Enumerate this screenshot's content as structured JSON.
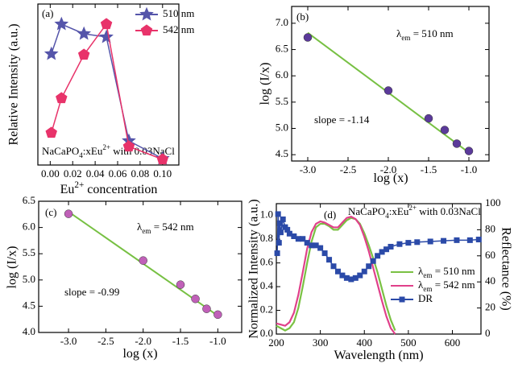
{
  "chart_data": [
    {
      "type": "line",
      "panel_label": "(a)",
      "xlabel": [
        "Eu",
        {
          "text": "2+",
          "shift": "super"
        },
        " concentration"
      ],
      "ylabel": "Relative Intensity (a.u.)",
      "xlim": [
        -0.011,
        0.1145
      ],
      "ylim": [
        0,
        1
      ],
      "xticks": [
        {
          "value": 0,
          "label": "0.00"
        },
        {
          "value": 0.02,
          "label": "0.02"
        },
        {
          "value": 0.04,
          "label": "0.04"
        },
        {
          "value": 0.06,
          "label": "0.06"
        },
        {
          "value": 0.08,
          "label": "0.08"
        },
        {
          "value": 0.1,
          "label": "0.10"
        }
      ],
      "annotations": [
        [
          "NaCaPO",
          {
            "text": "4",
            "shift": "sub"
          },
          ":xEu",
          {
            "text": "2+",
            "shift": "super"
          },
          " with 0.03NaCl"
        ]
      ],
      "series": [
        {
          "name": [
            "510 nm"
          ],
          "color": "#5555aa",
          "marker": "star",
          "x": [
            0.001,
            0.01,
            0.03,
            0.05,
            0.07,
            0.1
          ],
          "values": [
            0.69,
            0.875,
            0.815,
            0.795,
            0.15,
            0.04
          ]
        },
        {
          "name": [
            "542 nm"
          ],
          "color": "#e8336a",
          "marker": "pentagon",
          "x": [
            0.001,
            0.01,
            0.03,
            0.05,
            0.07,
            0.1
          ],
          "values": [
            0.2,
            0.415,
            0.685,
            0.875,
            0.115,
            0.035
          ]
        }
      ]
    },
    {
      "type": "scatter",
      "panel_label": "(b)",
      "xlabel": [
        "log (x)"
      ],
      "ylabel": "log (I/x)",
      "xlim": [
        -3.2,
        -0.75
      ],
      "ylim": [
        4.38,
        7.32
      ],
      "xticks": [
        {
          "value": -3,
          "label": "-3.0"
        },
        -2.5,
        {
          "value": -2,
          "label": "-2.0"
        },
        -1.5,
        {
          "value": -1,
          "label": "-1.0"
        }
      ],
      "yticks": [
        4.5,
        {
          "value": 5,
          "label": "5.0"
        },
        5.5,
        {
          "value": 6,
          "label": "6.0"
        },
        6.5,
        {
          "value": 7,
          "label": "7.0"
        }
      ],
      "annotations": [
        [
          "λ",
          {
            "text": "em",
            "shift": "sub"
          },
          " = 510 nm"
        ],
        [
          "slope = -1.14"
        ]
      ],
      "fit": {
        "color": "#77c043",
        "x": [
          -3,
          -1
        ],
        "values": [
          6.82,
          4.54
        ]
      },
      "series": [
        {
          "color": "#5b3a9a",
          "marker": "circle",
          "x": [
            -3,
            -2,
            -1.5,
            -1.3,
            -1.15,
            -1
          ],
          "values": [
            6.73,
            5.72,
            5.19,
            4.97,
            4.71,
            4.57
          ]
        }
      ]
    },
    {
      "type": "scatter",
      "panel_label": "(c)",
      "xlabel": [
        "log (x)"
      ],
      "ylabel": "log (I/x)",
      "xlim": [
        -3.4,
        -0.68
      ],
      "ylim": [
        4,
        6.5
      ],
      "xticks": [
        {
          "value": -3,
          "label": "-3.0"
        },
        -2.5,
        {
          "value": -2,
          "label": "-2.0"
        },
        -1.5,
        {
          "value": -1,
          "label": "-1.0"
        }
      ],
      "yticks": [
        {
          "value": 4,
          "label": "4.0"
        },
        4.5,
        {
          "value": 5,
          "label": "5.0"
        },
        5.5,
        {
          "value": 6,
          "label": "6.0"
        },
        6.5
      ],
      "annotations": [
        [
          "λ",
          {
            "text": "em",
            "shift": "sub"
          },
          " = 542 nm"
        ],
        [
          "slope = -0.99"
        ]
      ],
      "fit": {
        "color": "#77c043",
        "x": [
          -3,
          -1
        ],
        "values": [
          6.3,
          4.32
        ]
      },
      "series": [
        {
          "color": "#c060b8",
          "marker": "circle",
          "x": [
            -3,
            -2,
            -1.5,
            -1.3,
            -1.15,
            -1
          ],
          "values": [
            6.26,
            5.37,
            4.91,
            4.64,
            4.45,
            4.34
          ]
        }
      ]
    },
    {
      "type": "line",
      "panel_label": "(d)",
      "xlabel": [
        "Wavelength (nm)"
      ],
      "ylabel": "Normalized Intensity (a.u.)",
      "y2label": "Reflectance (%)",
      "xlim": [
        200,
        665
      ],
      "ylim": [
        0,
        1.1
      ],
      "y2lim": [
        0,
        100
      ],
      "xticks": [
        200,
        300,
        400,
        500,
        600
      ],
      "yticks": [
        {
          "value": 0,
          "label": "0.0"
        },
        0.2,
        0.4,
        0.6,
        0.8,
        {
          "value": 1,
          "label": "1.0"
        }
      ],
      "y2ticks": [
        0,
        20,
        40,
        60,
        80,
        100
      ],
      "annotations": [
        [
          "NaCaPO",
          {
            "text": "4",
            "shift": "sub"
          },
          ":xEu",
          {
            "text": "2+",
            "shift": "super"
          },
          " with 0.03NaCl"
        ]
      ],
      "series": [
        {
          "name": [
            "λ",
            {
              "text": "em",
              "shift": "sub"
            },
            " = 510 nm"
          ],
          "color": "#7ac143",
          "x": [
            200,
            210,
            220,
            230,
            240,
            250,
            260,
            270,
            280,
            290,
            300,
            310,
            320,
            330,
            340,
            350,
            360,
            370,
            380,
            390,
            400,
            410,
            420,
            430,
            440,
            450,
            460,
            470
          ],
          "values": [
            0.07,
            0.05,
            0.03,
            0.05,
            0.1,
            0.22,
            0.4,
            0.6,
            0.78,
            0.9,
            0.93,
            0.93,
            0.91,
            0.88,
            0.88,
            0.92,
            0.96,
            0.98,
            0.97,
            0.93,
            0.85,
            0.75,
            0.64,
            0.52,
            0.38,
            0.24,
            0.12,
            0.03
          ]
        },
        {
          "name": [
            "λ",
            {
              "text": "em",
              "shift": "sub"
            },
            " = 542 nm"
          ],
          "color": "#e0408a",
          "x": [
            200,
            210,
            220,
            230,
            240,
            250,
            260,
            270,
            280,
            290,
            300,
            310,
            320,
            330,
            340,
            350,
            360,
            370,
            380,
            390,
            400,
            410,
            420,
            430,
            440,
            450,
            460,
            470
          ],
          "values": [
            0.09,
            0.08,
            0.07,
            0.1,
            0.18,
            0.33,
            0.52,
            0.72,
            0.86,
            0.93,
            0.95,
            0.94,
            0.92,
            0.9,
            0.9,
            0.94,
            0.98,
            0.99,
            0.97,
            0.92,
            0.82,
            0.7,
            0.56,
            0.42,
            0.28,
            0.15,
            0.05,
            0
          ]
        },
        {
          "name": [
            "DR"
          ],
          "color": "#2b4aa8",
          "marker": "square",
          "axis": "y2",
          "x": [
            202,
            204,
            206,
            208,
            210,
            215,
            220,
            225,
            230,
            240,
            250,
            260,
            270,
            280,
            290,
            300,
            310,
            320,
            330,
            340,
            350,
            360,
            370,
            380,
            390,
            400,
            410,
            420,
            430,
            440,
            450,
            460,
            480,
            500,
            520,
            550,
            580,
            610,
            640,
            660
          ],
          "values": [
            62,
            92,
            70,
            85,
            78,
            88,
            82,
            80,
            77,
            75,
            73,
            73,
            70,
            68,
            68,
            66,
            62,
            57,
            52,
            48,
            45,
            43,
            42,
            43,
            45,
            48,
            52,
            56,
            60,
            63,
            65,
            67,
            69,
            70,
            70.5,
            71,
            71.5,
            72,
            72,
            72.5
          ]
        }
      ]
    }
  ]
}
